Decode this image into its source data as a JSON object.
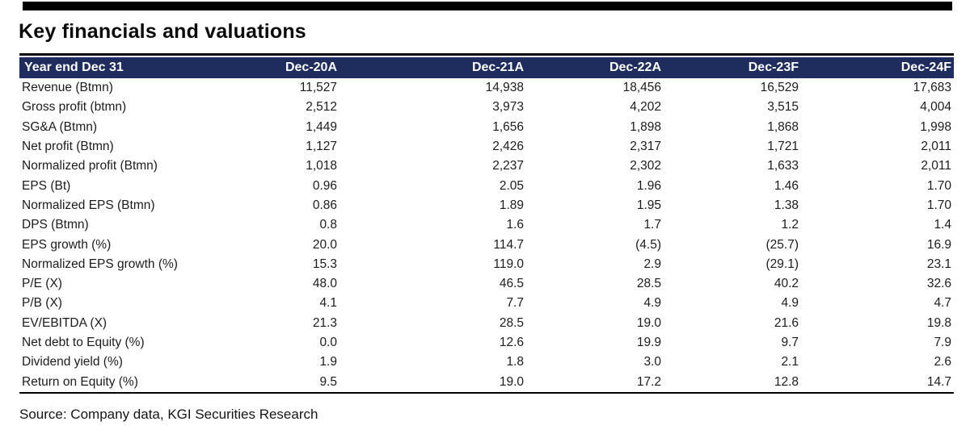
{
  "colors": {
    "header_bg": "#1e2c5e",
    "header_text": "#ffffff",
    "rule": "#000000",
    "body_text": "#1c1c1c"
  },
  "chart_data": {
    "type": "table",
    "title": "Key financials and valuations",
    "source": "Source: Company data, KGI Securities Research",
    "columns": [
      "Year end Dec 31",
      "Dec-20A",
      "Dec-21A",
      "Dec-22A",
      "Dec-23F",
      "Dec-24F"
    ],
    "rows": [
      {
        "label": "Revenue (Btmn)",
        "values": [
          "11,527",
          "14,938",
          "18,456",
          "16,529",
          "17,683"
        ]
      },
      {
        "label": "Gross profit (btmn)",
        "values": [
          "2,512",
          "3,973",
          "4,202",
          "3,515",
          "4,004"
        ]
      },
      {
        "label": "SG&A (Btmn)",
        "values": [
          "1,449",
          "1,656",
          "1,898",
          "1,868",
          "1,998"
        ]
      },
      {
        "label": "Net profit (Btmn)",
        "values": [
          "1,127",
          "2,426",
          "2,317",
          "1,721",
          "2,011"
        ]
      },
      {
        "label": "Normalized profit (Btmn)",
        "values": [
          "1,018",
          "2,237",
          "2,302",
          "1,633",
          "2,011"
        ]
      },
      {
        "label": "EPS (Bt)",
        "values": [
          "0.96",
          "2.05",
          "1.96",
          "1.46",
          "1.70"
        ]
      },
      {
        "label": "Normalized EPS (Btmn)",
        "values": [
          "0.86",
          "1.89",
          "1.95",
          "1.38",
          "1.70"
        ]
      },
      {
        "label": "DPS (Btmn)",
        "values": [
          "0.8",
          "1.6",
          "1.7",
          "1.2",
          "1.4"
        ]
      },
      {
        "label": "EPS growth (%)",
        "values": [
          "20.0",
          "114.7",
          "(4.5)",
          "(25.7)",
          "16.9"
        ]
      },
      {
        "label": "Normalized EPS growth (%)",
        "values": [
          "15.3",
          "119.0",
          "2.9",
          "(29.1)",
          "23.1"
        ]
      },
      {
        "label": "P/E (X)",
        "values": [
          "48.0",
          "46.5",
          "28.5",
          "40.2",
          "32.6"
        ]
      },
      {
        "label": "P/B (X)",
        "values": [
          "4.1",
          "7.7",
          "4.9",
          "4.9",
          "4.7"
        ]
      },
      {
        "label": "EV/EBITDA (X)",
        "values": [
          "21.3",
          "28.5",
          "19.0",
          "21.6",
          "19.8"
        ]
      },
      {
        "label": "Net debt to Equity (%)",
        "values": [
          "0.0",
          "12.6",
          "19.9",
          "9.7",
          "7.9"
        ]
      },
      {
        "label": "Dividend yield (%)",
        "values": [
          "1.9",
          "1.8",
          "3.0",
          "2.1",
          "2.6"
        ]
      },
      {
        "label": "Return on Equity (%)",
        "values": [
          "9.5",
          "19.0",
          "17.2",
          "12.8",
          "14.7"
        ]
      }
    ]
  }
}
